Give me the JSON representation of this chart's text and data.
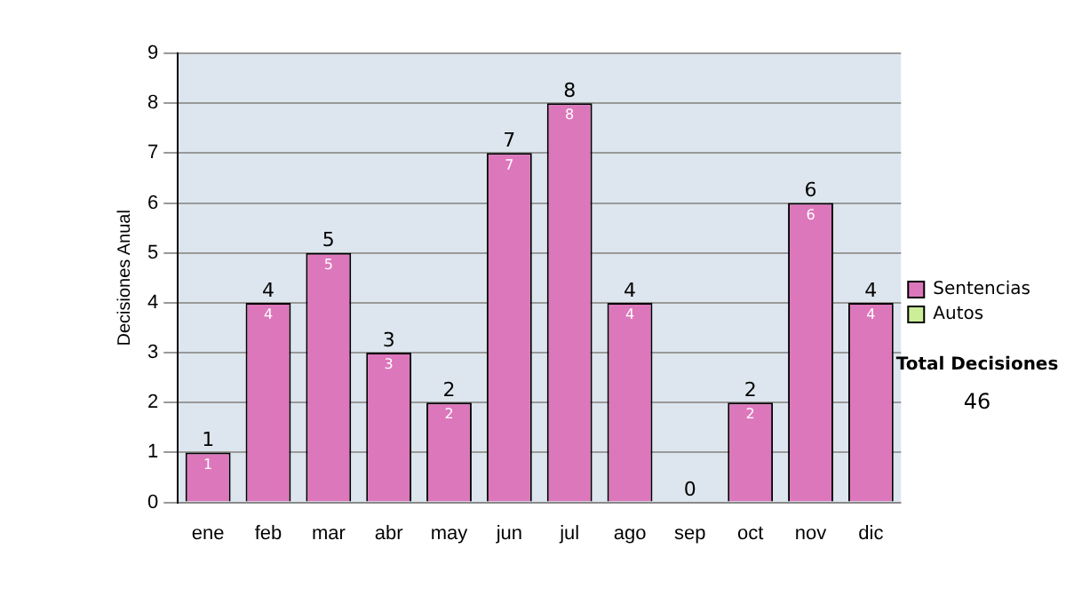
{
  "chart_data": {
    "type": "bar",
    "ylabel": "Decisiones Anual",
    "categories": [
      "ene",
      "feb",
      "mar",
      "abr",
      "may",
      "jun",
      "jul",
      "ago",
      "sep",
      "oct",
      "nov",
      "dic"
    ],
    "series": [
      {
        "name": "Sentencias",
        "color": "#dd77bb",
        "values": [
          1,
          4,
          5,
          3,
          2,
          7,
          8,
          4,
          0,
          2,
          6,
          4
        ],
        "value_labels": [
          "1",
          "4",
          "5",
          "3",
          "2",
          "7",
          "8",
          "4",
          null,
          "2",
          "6",
          "4"
        ]
      },
      {
        "name": "Autos",
        "color": "#ccee99",
        "values": [
          0,
          0,
          0,
          0,
          0,
          0,
          0,
          0,
          0,
          0,
          0,
          0
        ]
      }
    ],
    "stacked": true,
    "totals": [
      "1",
      "4",
      "5",
      "3",
      "2",
      "7",
      "8",
      "4",
      "0",
      "2",
      "6",
      "4"
    ],
    "ylim": [
      0,
      9
    ],
    "yticks": [
      0,
      1,
      2,
      3,
      4,
      5,
      6,
      7,
      8,
      9
    ],
    "grid": "y",
    "legend": "right",
    "annotations": [
      "Total Decisiones",
      "46"
    ]
  }
}
